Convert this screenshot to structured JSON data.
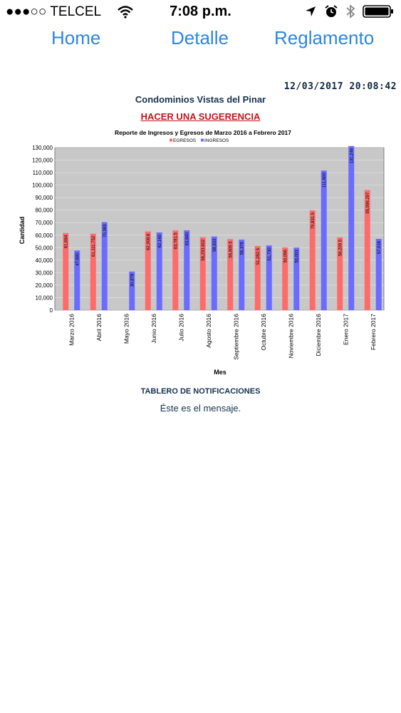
{
  "status": {
    "carrier": "●●●○○ TELCEL",
    "time": "7:08 p.m."
  },
  "nav": {
    "home": "Home",
    "detalle": "Detalle",
    "reglamento": "Reglamento"
  },
  "header": {
    "datetime": "12/03/2017 20:08:42",
    "title": "Condominios Vistas del Pinar",
    "suggestion_link": "HACER UNA SUGERENCIA"
  },
  "board": {
    "title": "TABLERO DE NOTIFICACIONES",
    "message": "Éste es el mensaje."
  },
  "colors": {
    "accent": "#2e86de",
    "egresos": "#ff6b6b",
    "ingresos": "#6b6bff",
    "plot_bg": "#c8c8c8",
    "link_red": "#c0141c"
  },
  "chart_data": {
    "type": "bar",
    "title": "Reporte de Ingresos y Egresos de Marzo 2016 a Febrero 2017",
    "xlabel": "Mes",
    "ylabel": "Cantidad",
    "ylim": [
      0,
      130000
    ],
    "yticks": [
      "0",
      "10,000",
      "20,000",
      "30,000",
      "40,000",
      "50,000",
      "60,000",
      "70,000",
      "80,000",
      "90,000",
      "100,000",
      "110,000",
      "120,000",
      "130,000"
    ],
    "legend_position": "top",
    "categories": [
      "Marzo 2016",
      "Abril 2016",
      "Mayo 2016",
      "Junio 2016",
      "Julio 2016",
      "Agosto 2016",
      "Septiembre 2016",
      "Octubre 2016",
      "Noviembre 2016",
      "Diciembre 2016",
      "Enero 2017",
      "Febrero 2017"
    ],
    "series": [
      {
        "name": "EGRESOS",
        "values": [
          61684,
          61111.752,
          null,
          62908.6,
          63781.5,
          58293.602,
          56809.5,
          51282.5,
          50096,
          79831.5,
          58209.5,
          95996.297
        ],
        "labels": [
          "61,684",
          "61,111.752",
          "",
          "62,908.6",
          "63,781.5",
          "58,293.602",
          "56,809.5",
          "51,282.5",
          "50,096",
          "79,831.5",
          "58,209.5",
          "95,996.297"
        ]
      },
      {
        "name": "INGRESOS",
        "values": [
          47690,
          70363,
          30878,
          62160,
          63840,
          58903,
          56376,
          51730,
          50003,
          111600,
          131246,
          57016
        ],
        "labels": [
          "47,690",
          "70,363",
          "30,878",
          "62,160",
          "63,840",
          "58,903",
          "56,376",
          "51,730",
          "50,003",
          "111,600",
          "131,246",
          "57,016"
        ]
      }
    ]
  }
}
